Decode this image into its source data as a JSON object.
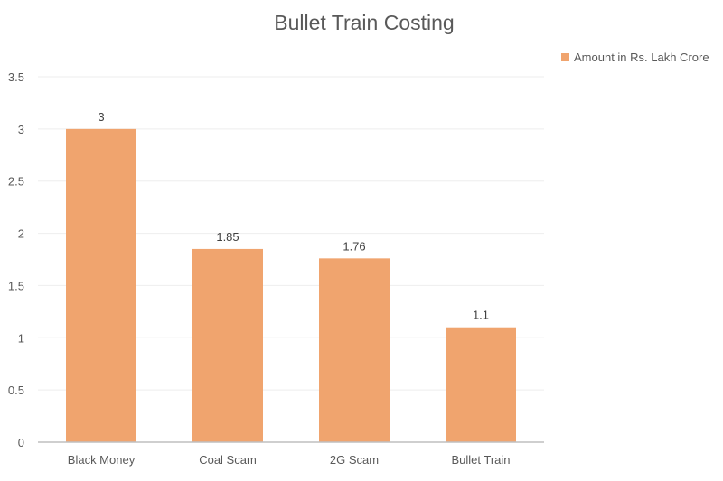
{
  "chart_data": {
    "type": "bar",
    "title": "Bullet Train Costing",
    "categories": [
      "Black Money",
      "Coal Scam",
      "2G Scam",
      "Bullet Train"
    ],
    "series": [
      {
        "name": "Amount in Rs. Lakh Crore",
        "values": [
          3,
          1.85,
          1.76,
          1.1
        ],
        "color": "#F0A46E"
      }
    ],
    "data_labels": [
      "3",
      "1.85",
      "1.76",
      "1.1"
    ],
    "yticks": [
      "0",
      "0.5",
      "1",
      "1.5",
      "2",
      "2.5",
      "3",
      "3.5"
    ],
    "ylim": [
      0,
      3.5
    ],
    "xlabel": "",
    "ylabel": "",
    "grid": true,
    "legend": "top-right"
  }
}
